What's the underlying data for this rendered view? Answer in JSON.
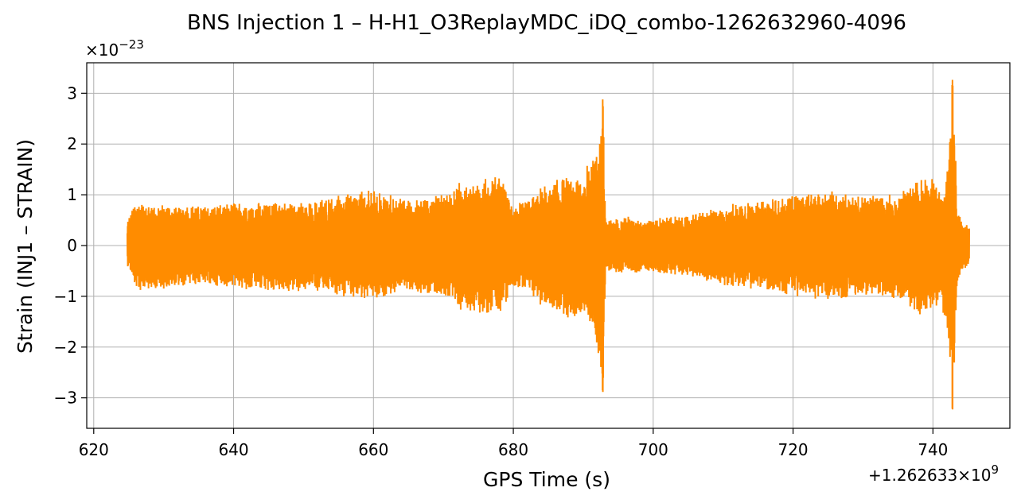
{
  "chart_data": {
    "type": "line",
    "title": "BNS Injection 1 – H-H1_O3ReplayMDC_iDQ_combo-1262632960-4096",
    "xlabel": "GPS Time (s)",
    "ylabel": "Strain (INJ1 – STRAIN)",
    "x_offset_label": "+1.262633×10",
    "x_offset_exponent": "9",
    "y_scale_label": "×10",
    "y_scale_exponent": "−23",
    "xlim": [
      619,
      751
    ],
    "ylim": [
      -3.6,
      3.6
    ],
    "x_ticks": [
      620,
      640,
      660,
      680,
      700,
      720,
      740
    ],
    "x_tick_labels": [
      "620",
      "640",
      "660",
      "680",
      "700",
      "720",
      "740"
    ],
    "y_ticks": [
      -3,
      -2,
      -1,
      0,
      1,
      2,
      3
    ],
    "y_tick_labels": [
      "−3",
      "−2",
      "−1",
      "0",
      "1",
      "2",
      "3"
    ],
    "grid": true,
    "series": [
      {
        "color": "#ff8c00",
        "x_start": 624.8,
        "x_end": 745.2,
        "envelope": {
          "x": [
            624.8,
            626,
            630,
            635,
            640,
            645,
            650,
            655,
            660,
            665,
            670,
            672,
            675,
            678,
            680,
            682,
            684,
            686,
            688,
            690,
            691,
            692,
            692.8,
            693.2,
            695,
            700,
            705,
            710,
            715,
            720,
            725,
            730,
            735,
            738,
            740,
            741,
            742,
            742.8,
            743.5,
            744,
            745.2
          ],
          "upper": [
            0.5,
            0.9,
            0.8,
            0.8,
            0.85,
            0.9,
            0.85,
            1.0,
            1.1,
            0.9,
            1.0,
            1.25,
            1.3,
            1.4,
            0.8,
            0.9,
            1.2,
            1.3,
            1.4,
            1.35,
            1.8,
            2.0,
            2.9,
            0.5,
            0.6,
            0.55,
            0.6,
            0.8,
            0.9,
            1.0,
            1.1,
            1.0,
            1.05,
            1.3,
            1.4,
            1.1,
            1.55,
            3.28,
            0.9,
            0.5,
            0.4
          ],
          "lower": [
            -0.4,
            -0.9,
            -0.85,
            -0.8,
            -0.85,
            -0.95,
            -0.9,
            -1.0,
            -1.1,
            -0.9,
            -1.05,
            -1.25,
            -1.35,
            -1.4,
            -0.8,
            -0.9,
            -1.2,
            -1.35,
            -1.45,
            -1.4,
            -1.85,
            -2.0,
            -2.9,
            -0.5,
            -0.55,
            -0.55,
            -0.6,
            -0.8,
            -0.9,
            -1.0,
            -1.1,
            -1.0,
            -1.05,
            -1.35,
            -1.4,
            -1.1,
            -1.6,
            -3.28,
            -0.9,
            -0.5,
            -0.4
          ]
        }
      }
    ]
  }
}
